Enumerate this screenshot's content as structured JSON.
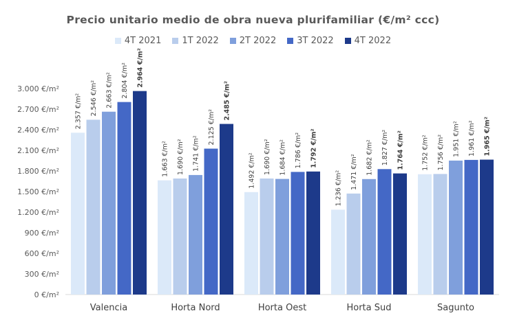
{
  "chart_data": {
    "type": "bar",
    "title": "Precio unitario medio de obra nueva plurifamiliar (€/m² ccc)",
    "categories": [
      "Valencia",
      "Horta Nord",
      "Horta Oest",
      "Horta Sud",
      "Sagunto"
    ],
    "series": [
      {
        "name": "4T 2021",
        "color": "#dbe9f9",
        "values": [
          2357,
          1663,
          1492,
          1236,
          1752
        ],
        "labels": [
          "2.357 €/m²",
          "1.663 €/m²",
          "1.492 €/m²",
          "1.236 €/m²",
          "1.752 €/m²"
        ]
      },
      {
        "name": "1T 2022",
        "color": "#b9cdec",
        "values": [
          2546,
          1690,
          1690,
          1471,
          1756
        ],
        "labels": [
          "2.546 €/m²",
          "1.690 €/m²",
          "1.690 €/m²",
          "1.471 €/m²",
          "1.756 €/m²"
        ]
      },
      {
        "name": "2T 2022",
        "color": "#7f9fdc",
        "values": [
          2663,
          1741,
          1684,
          1682,
          1951
        ],
        "labels": [
          "2.663 €/m²",
          "1.741 €/m²",
          "1.684 €/m²",
          "1.682 €/m²",
          "1.951 €/m²"
        ]
      },
      {
        "name": "3T 2022",
        "color": "#4468c6",
        "values": [
          2804,
          2125,
          1786,
          1827,
          1961
        ],
        "labels": [
          "2.804 €/m²",
          "2.125 €/m²",
          "1.786 €/m²",
          "1.827 €/m²",
          "1.961 €/m²"
        ]
      },
      {
        "name": "4T 2022",
        "color": "#1d3a8a",
        "values": [
          2964,
          2485,
          1792,
          1764,
          1965
        ],
        "labels": [
          "2.964 €/m²",
          "2.485 €/m²",
          "1.792 €/m²",
          "1.764 €/m²",
          "1.965 €/m²"
        ],
        "bold_labels": true
      }
    ],
    "ylim": [
      0,
      3000
    ],
    "yticks": [
      0,
      300,
      600,
      900,
      1200,
      1500,
      1800,
      2100,
      2400,
      2700,
      3000
    ],
    "ytick_labels": [
      "0 €/m²",
      "300 €/m²",
      "600 €/m²",
      "900 €/m²",
      "1.200 €/m²",
      "1.500 €/m²",
      "1.800 €/m²",
      "2.100 €/m²",
      "2.400 €/m²",
      "2.700 €/m²",
      "3.000 €/m²"
    ],
    "legend": "top-center",
    "grid": false
  }
}
